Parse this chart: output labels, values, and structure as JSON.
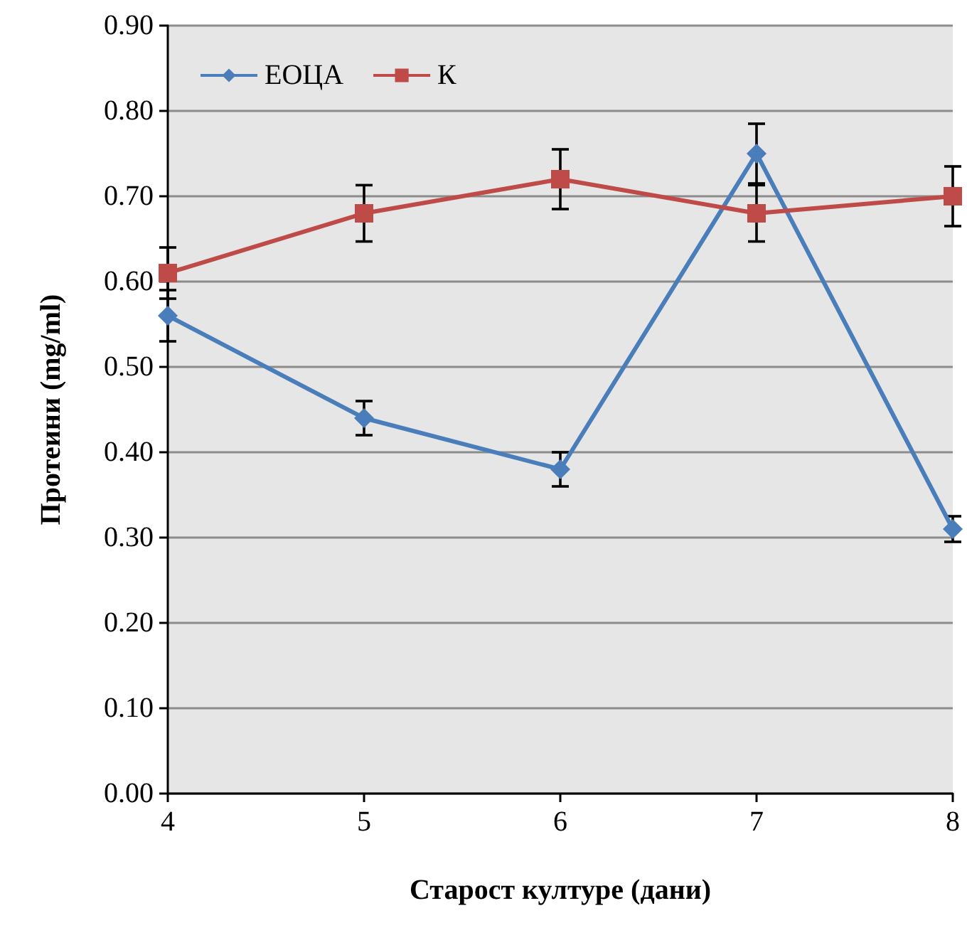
{
  "chart_data": {
    "type": "line",
    "xlabel": "Старост културе (дани)",
    "ylabel": "Протеини (mg/ml)",
    "x": [
      4,
      5,
      6,
      7,
      8
    ],
    "xlim": [
      4,
      8
    ],
    "xticks": [
      4,
      5,
      6,
      7,
      8
    ],
    "ylim": [
      0,
      0.9
    ],
    "yticks": [
      {
        "value": 0,
        "label": "0.00"
      },
      {
        "value": 0.1,
        "label": "0.10"
      },
      {
        "value": 0.2,
        "label": "0.20"
      },
      {
        "value": 0.3,
        "label": "0.30"
      },
      {
        "value": 0.4,
        "label": "0.40"
      },
      {
        "value": 0.5,
        "label": "0.50"
      },
      {
        "value": 0.6,
        "label": "0.60"
      },
      {
        "value": 0.7,
        "label": "0.70"
      },
      {
        "value": 0.8,
        "label": "0.80"
      },
      {
        "value": 0.9,
        "label": "0.90"
      }
    ],
    "grid": "y",
    "legend": "top left",
    "line_style": "solid",
    "series": [
      {
        "name": "ЕОЦА",
        "color": "#4a7ebb",
        "marker": "diamond",
        "values": [
          0.56,
          0.44,
          0.38,
          0.75,
          0.31
        ],
        "errors": [
          0.03,
          0.02,
          0.02,
          0.035,
          0.015
        ]
      },
      {
        "name": "К",
        "color": "#be4b48",
        "marker": "square",
        "values": [
          0.61,
          0.68,
          0.72,
          0.68,
          0.7
        ],
        "errors": [
          0.03,
          0.033,
          0.035,
          0.033,
          0.035
        ]
      }
    ]
  }
}
